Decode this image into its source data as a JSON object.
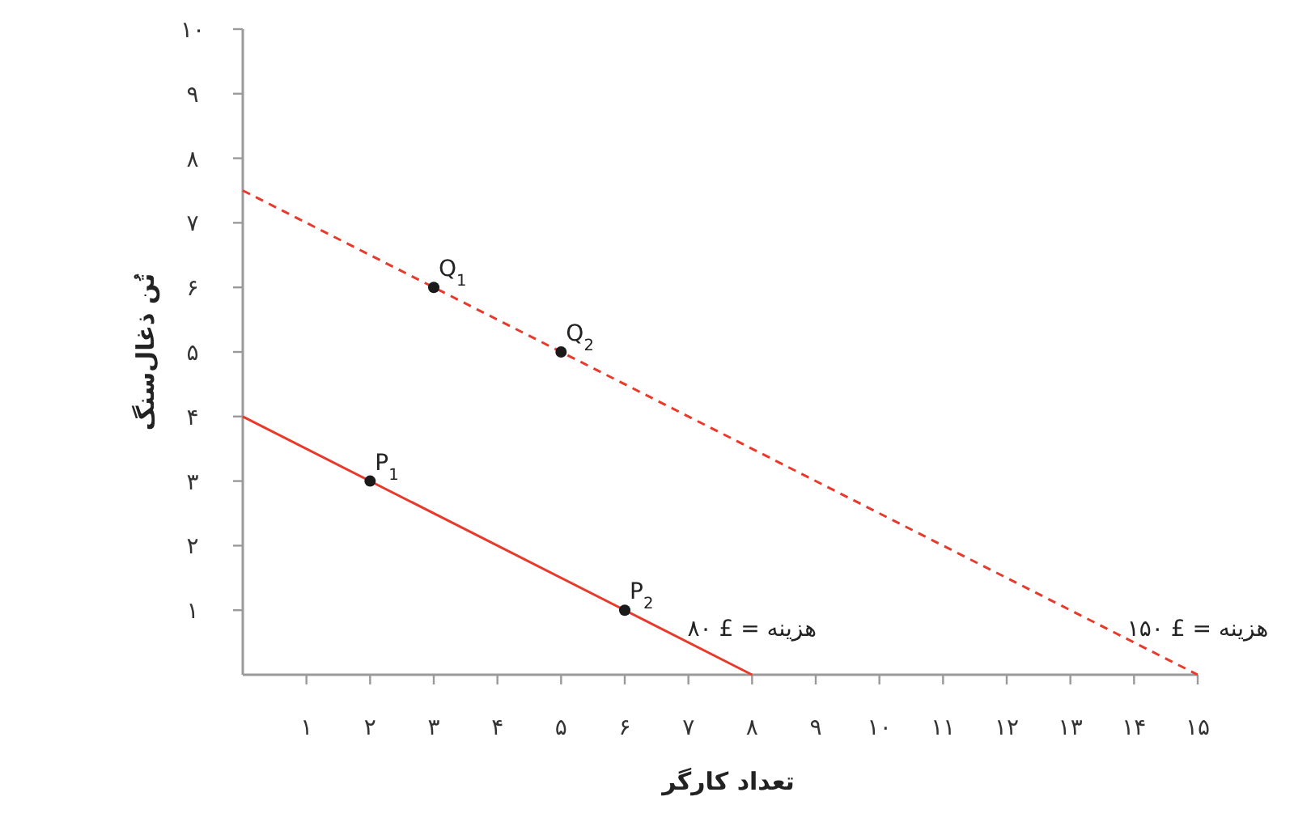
{
  "chart_data": {
    "type": "line",
    "xlabel": "تعداد کارگر",
    "ylabel": "تُن ذغال‌سنگ",
    "xlim": [
      0,
      15
    ],
    "ylim": [
      0,
      10
    ],
    "xticks": [
      {
        "value": 1,
        "label": "۱"
      },
      {
        "value": 2,
        "label": "۲"
      },
      {
        "value": 3,
        "label": "۳"
      },
      {
        "value": 4,
        "label": "۴"
      },
      {
        "value": 5,
        "label": "۵"
      },
      {
        "value": 6,
        "label": "۶"
      },
      {
        "value": 7,
        "label": "۷"
      },
      {
        "value": 8,
        "label": "۸"
      },
      {
        "value": 9,
        "label": "۹"
      },
      {
        "value": 10,
        "label": "۱۰"
      },
      {
        "value": 11,
        "label": "۱۱"
      },
      {
        "value": 12,
        "label": "۱۲"
      },
      {
        "value": 13,
        "label": "۱۳"
      },
      {
        "value": 14,
        "label": "۱۴"
      },
      {
        "value": 15,
        "label": "۱۵"
      }
    ],
    "yticks": [
      {
        "value": 1,
        "label": "۱"
      },
      {
        "value": 2,
        "label": "۲"
      },
      {
        "value": 3,
        "label": "۳"
      },
      {
        "value": 4,
        "label": "۴"
      },
      {
        "value": 5,
        "label": "۵"
      },
      {
        "value": 6,
        "label": "۶"
      },
      {
        "value": 7,
        "label": "۷"
      },
      {
        "value": 8,
        "label": "۸"
      },
      {
        "value": 9,
        "label": "۹"
      },
      {
        "value": 10,
        "label": "۱۰"
      }
    ],
    "marker": "none",
    "series": [
      {
        "x": [
          0,
          8
        ],
        "values": [
          4,
          0
        ],
        "color": "#e8392b",
        "line_style": "solid"
      },
      {
        "x": [
          0,
          15
        ],
        "values": [
          7.5,
          0
        ],
        "color": "#e8392b",
        "line_style": "dashed"
      },
      {
        "type": "scatter",
        "x": [
          2,
          6,
          3,
          5
        ],
        "values": [
          3,
          1,
          6,
          5
        ],
        "color": "#1a1a1a",
        "marker": "circle"
      }
    ],
    "annotations": [
      {
        "text": "P$_{1}$",
        "x": 2,
        "y": 3
      },
      {
        "text": "P$_{2}$",
        "x": 6,
        "y": 1
      },
      {
        "text": "Q$_{1}$",
        "x": 3,
        "y": 6
      },
      {
        "text": "Q$_{2}$",
        "x": 5,
        "y": 5
      },
      {
        "text": "هزینه = £ ۸۰",
        "x": 8,
        "y": 0
      },
      {
        "text": "هزینه = £ ۱۵۰",
        "x": 15,
        "y": 0
      }
    ]
  }
}
